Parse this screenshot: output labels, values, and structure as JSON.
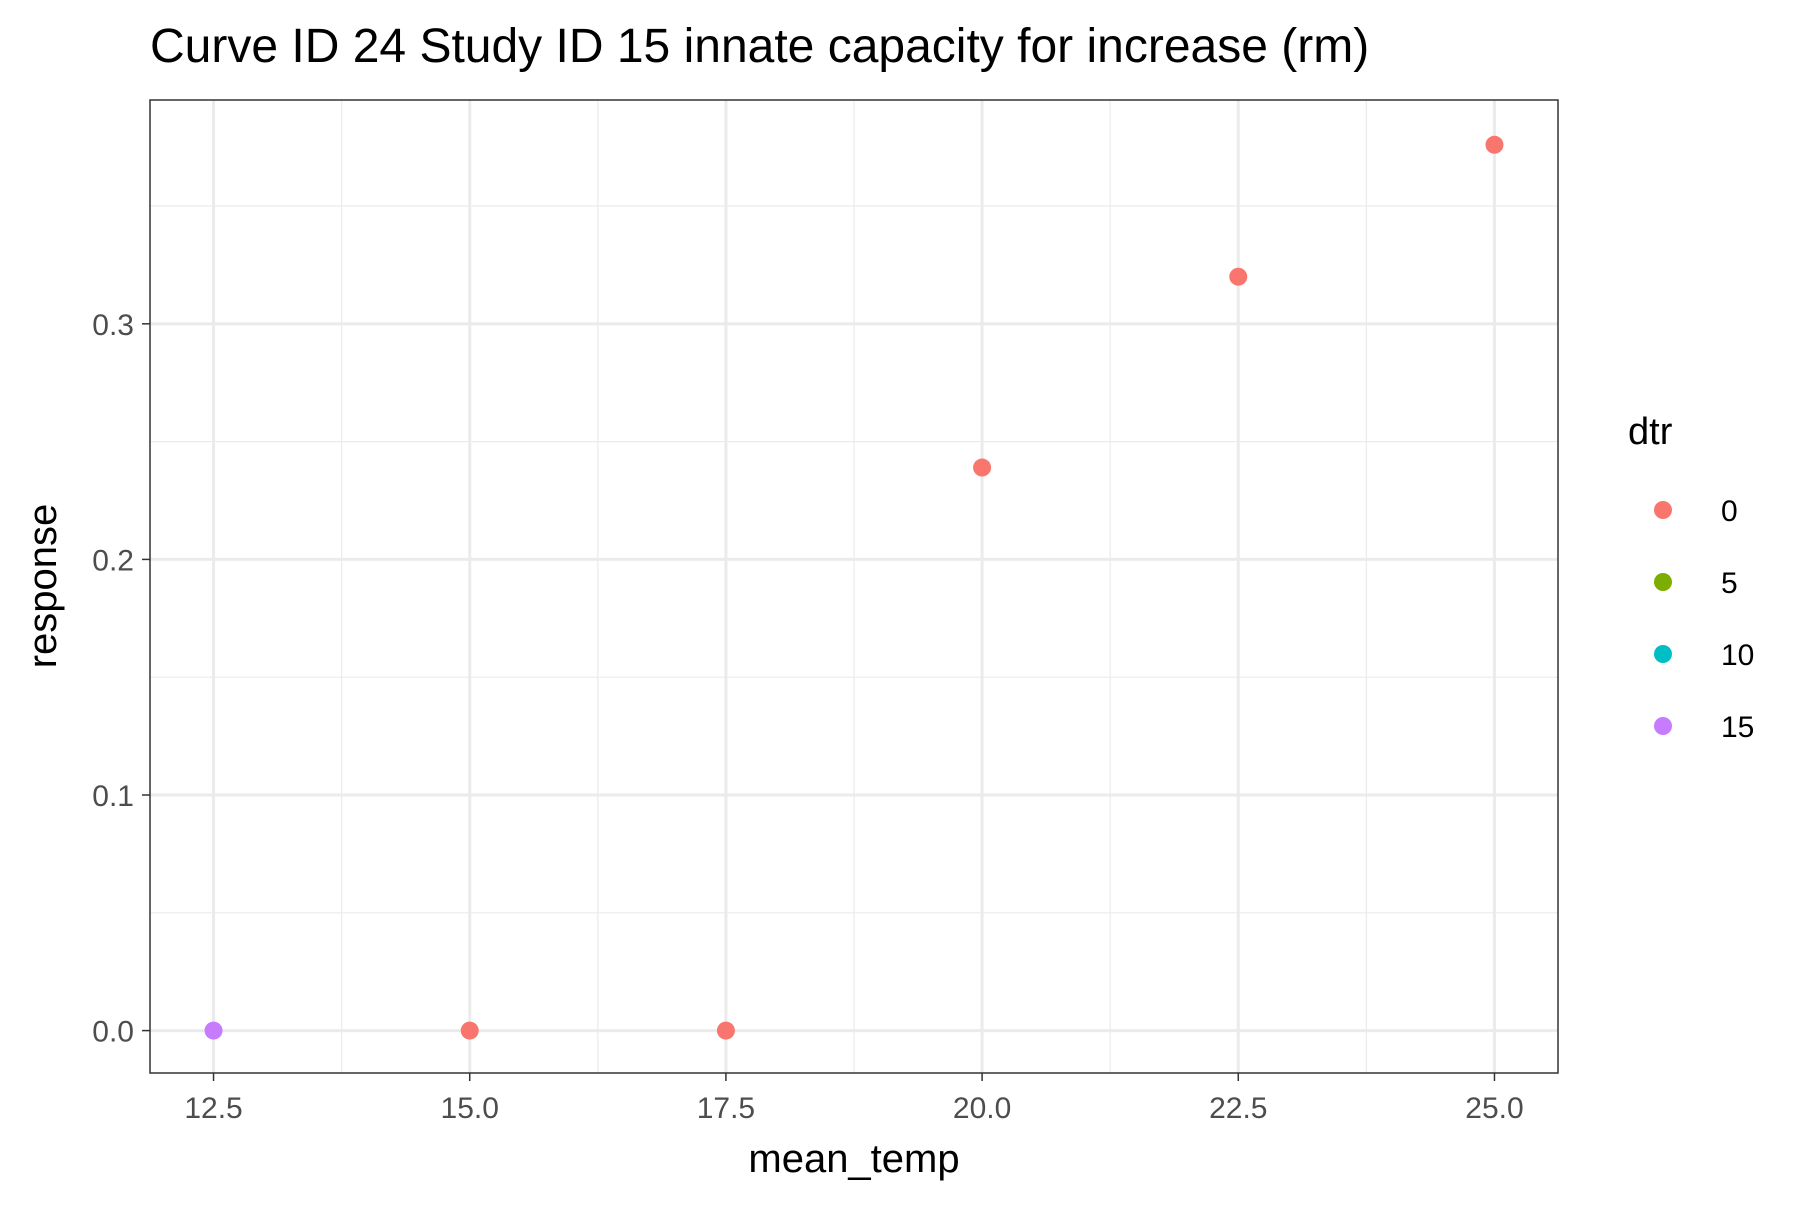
{
  "chart_data": {
    "type": "scatter",
    "title": "Curve ID 24 Study ID 15 innate capacity for increase (rm)",
    "xlabel": "mean_temp",
    "ylabel": "response",
    "xlim": [
      11.88,
      25.62
    ],
    "ylim": [
      -0.018,
      0.395
    ],
    "x_ticks": [
      12.5,
      15.0,
      17.5,
      20.0,
      22.5,
      25.0
    ],
    "x_tick_labels": [
      "12.5",
      "15.0",
      "17.5",
      "20.0",
      "22.5",
      "25.0"
    ],
    "x_minor_ticks": [
      13.75,
      16.25,
      18.75,
      21.25,
      23.75
    ],
    "y_ticks": [
      0.0,
      0.1,
      0.2,
      0.3
    ],
    "y_tick_labels": [
      "0.0",
      "0.1",
      "0.2",
      "0.3"
    ],
    "y_minor_ticks": [
      0.05,
      0.15,
      0.25,
      0.35
    ],
    "grid": true,
    "legend": {
      "title": "dtr",
      "position": "right",
      "entries": [
        {
          "label": "0",
          "color": "#F8766D"
        },
        {
          "label": "5",
          "color": "#7CAE00"
        },
        {
          "label": "10",
          "color": "#00BFC4"
        },
        {
          "label": "15",
          "color": "#C77CFF"
        }
      ]
    },
    "series": [
      {
        "name": "0",
        "color": "#F8766D",
        "x": [
          15.0,
          17.5,
          20.0,
          22.5,
          25.0
        ],
        "y": [
          0.0,
          0.0,
          0.239,
          0.32,
          0.376
        ]
      },
      {
        "name": "5",
        "color": "#7CAE00",
        "x": [],
        "y": []
      },
      {
        "name": "10",
        "color": "#00BFC4",
        "x": [],
        "y": []
      },
      {
        "name": "15",
        "color": "#C77CFF",
        "x": [
          12.5
        ],
        "y": [
          0.0
        ]
      }
    ]
  }
}
